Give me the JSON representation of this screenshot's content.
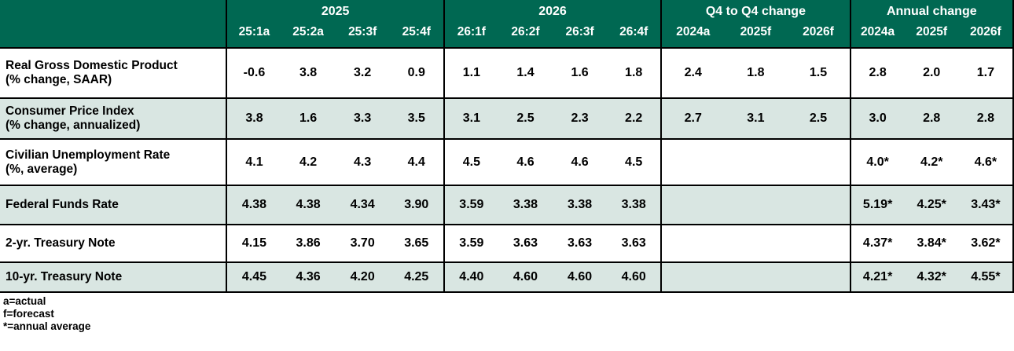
{
  "table": {
    "title": "economic-forecast-table",
    "colors": {
      "header_bg": "#006852",
      "header_text": "#ffffff",
      "shaded_row_bg": "#d9e6e2",
      "border": "#000000",
      "body_text": "#000000"
    },
    "header_groups": [
      {
        "label": "",
        "span": 1
      },
      {
        "label": "2025",
        "span": 4
      },
      {
        "label": "2026",
        "span": 4
      },
      {
        "label": "Q4 to Q4 change",
        "span": 3
      },
      {
        "label": "Annual change",
        "span": 3
      }
    ],
    "columns": [
      "25:1a",
      "25:2a",
      "25:3f",
      "25:4f",
      "26:1f",
      "26:2f",
      "26:3f",
      "26:4f",
      "2024a",
      "2025f",
      "2026f",
      "2024a",
      "2025f",
      "2026f"
    ],
    "rows": [
      {
        "label": "Real Gross Domestic Product",
        "sublabel": "(% change, SAAR)",
        "values": [
          "-0.6",
          "3.8",
          "3.2",
          "0.9",
          "1.1",
          "1.4",
          "1.6",
          "1.8",
          "2.4",
          "1.8",
          "1.5",
          "2.8",
          "2.0",
          "1.7"
        ]
      },
      {
        "label": "Consumer Price Index",
        "sublabel": "(% change, annualized)",
        "values": [
          "3.8",
          "1.6",
          "3.3",
          "3.5",
          "3.1",
          "2.5",
          "2.3",
          "2.2",
          "2.7",
          "3.1",
          "2.5",
          "3.0",
          "2.8",
          "2.8"
        ]
      },
      {
        "label": "Civilian Unemployment Rate",
        "sublabel": "(%, average)",
        "values": [
          "4.1",
          "4.2",
          "4.3",
          "4.4",
          "4.5",
          "4.6",
          "4.6",
          "4.5",
          "",
          "",
          "",
          "4.0*",
          "4.2*",
          "4.6*"
        ]
      },
      {
        "label": "Federal Funds Rate",
        "sublabel": "",
        "values": [
          "4.38",
          "4.38",
          "4.34",
          "3.90",
          "3.59",
          "3.38",
          "3.38",
          "3.38",
          "",
          "",
          "",
          "5.19*",
          "4.25*",
          "3.43*"
        ]
      },
      {
        "label": "2-yr. Treasury Note",
        "sublabel": "",
        "values": [
          "4.15",
          "3.86",
          "3.70",
          "3.65",
          "3.59",
          "3.63",
          "3.63",
          "3.63",
          "",
          "",
          "",
          "4.37*",
          "3.84*",
          "3.62*"
        ]
      },
      {
        "label": "10-yr. Treasury Note",
        "sublabel": "",
        "values": [
          "4.45",
          "4.36",
          "4.20",
          "4.25",
          "4.40",
          "4.60",
          "4.60",
          "4.60",
          "",
          "",
          "",
          "4.21*",
          "4.32*",
          "4.55*"
        ]
      }
    ],
    "footnotes": [
      "a=actual",
      "f=forecast",
      "*=annual average"
    ]
  }
}
